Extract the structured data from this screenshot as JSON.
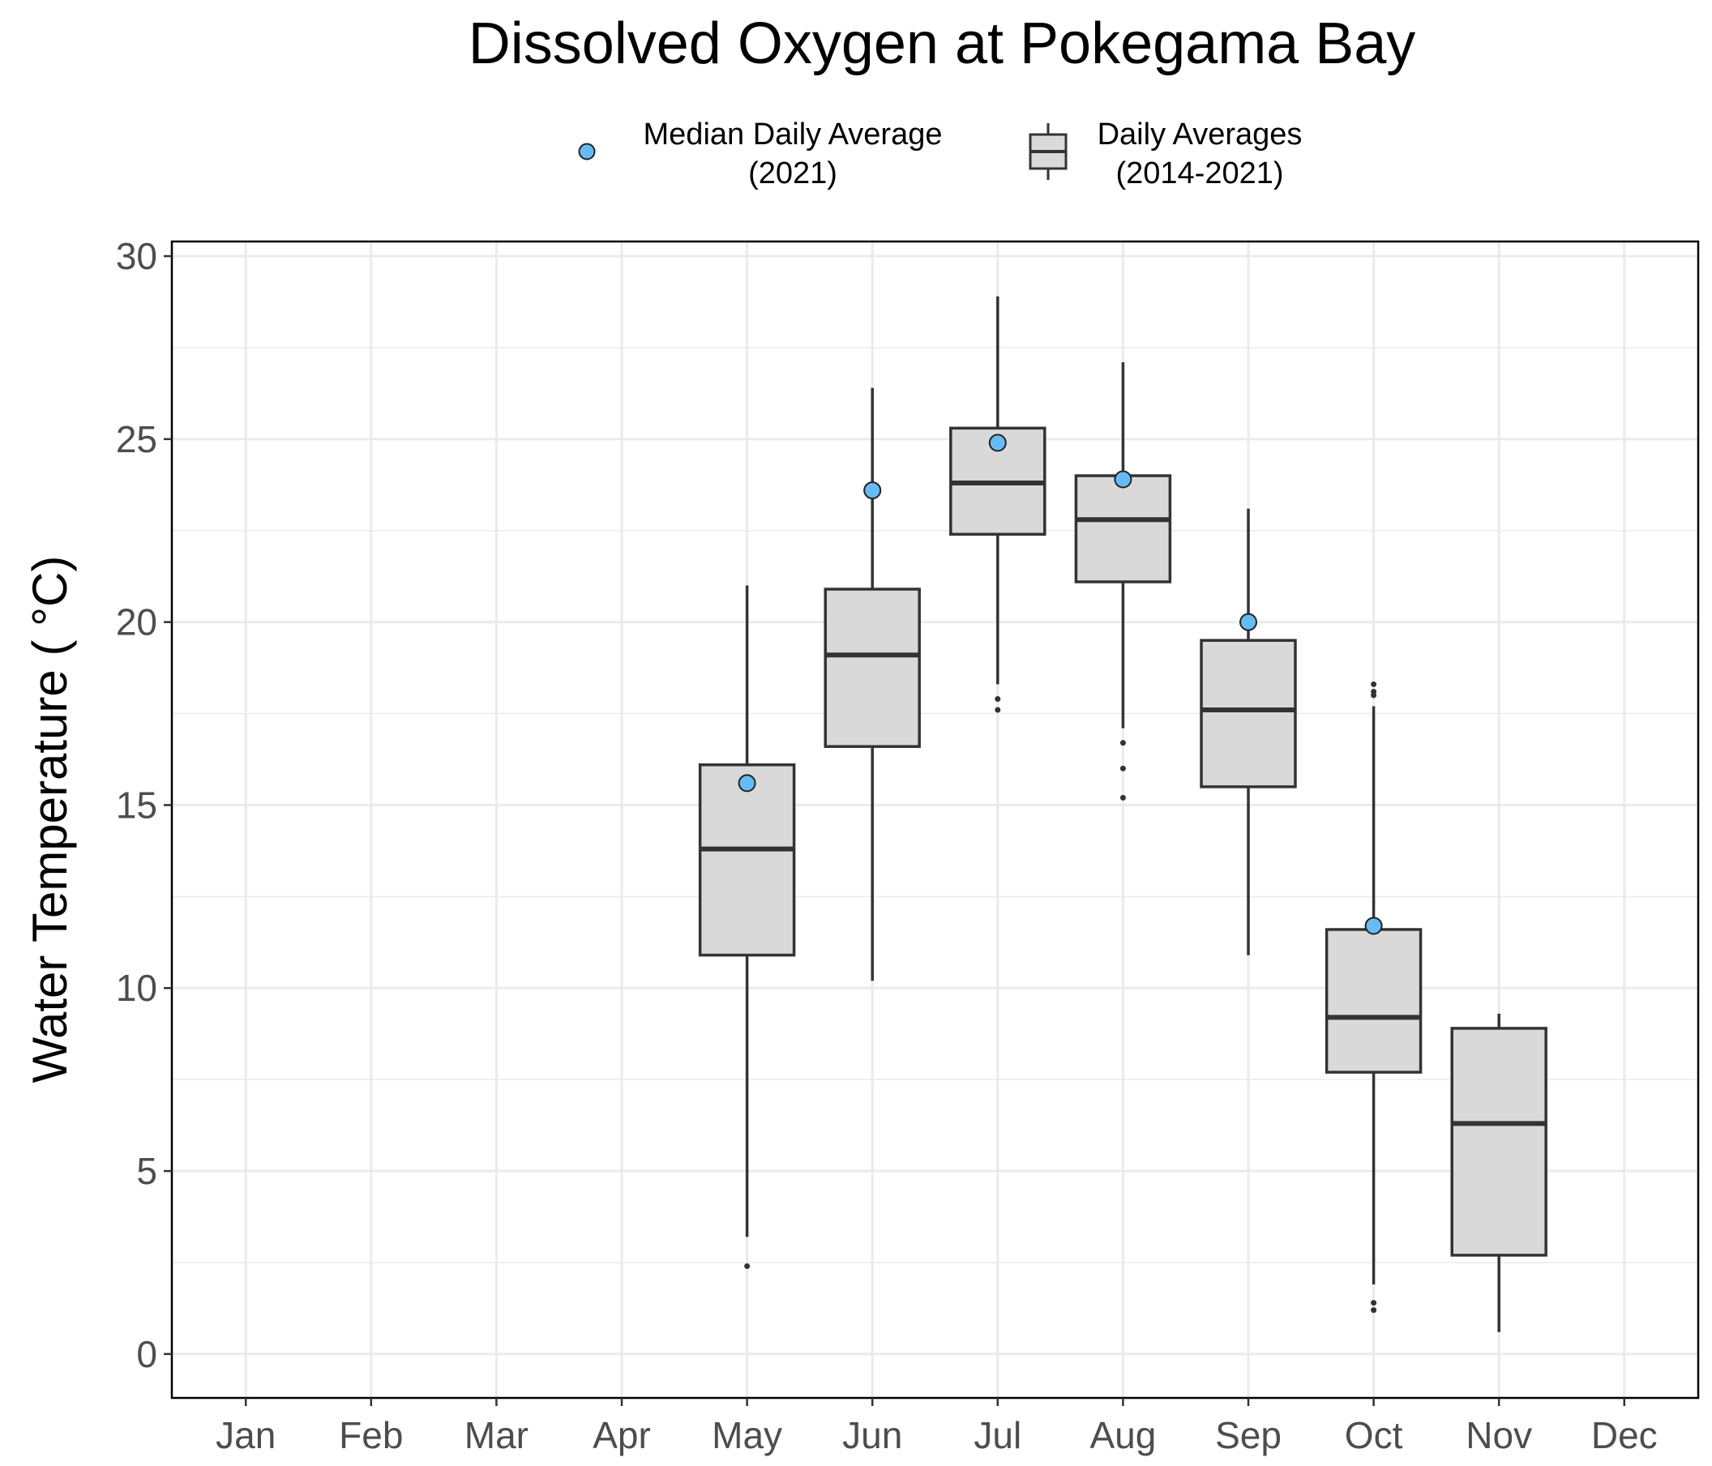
{
  "chart_data": {
    "type": "box",
    "title": "Dissolved Oxygen at Pokegama Bay",
    "ylabel": "Water Temperature ( °C)",
    "xlabel": "",
    "ylim": [
      -1.2,
      30.4
    ],
    "yticks": [
      0,
      5,
      10,
      15,
      20,
      25,
      30
    ],
    "grid": true,
    "legend_position": "top",
    "legend": {
      "point_label_line1": "Median Daily Average",
      "point_label_line2": "(2021)",
      "box_label_line1": "Daily Averages",
      "box_label_line2": "(2014-2021)"
    },
    "categories": [
      "Jan",
      "Feb",
      "Mar",
      "Apr",
      "May",
      "Jun",
      "Jul",
      "Aug",
      "Sep",
      "Oct",
      "Nov",
      "Dec"
    ],
    "boxes": [
      {
        "month": "May",
        "whisker_low": 3.2,
        "q1": 10.9,
        "median": 13.8,
        "q3": 16.1,
        "whisker_high": 21.0,
        "outliers": [
          2.4
        ]
      },
      {
        "month": "Jun",
        "whisker_low": 10.2,
        "q1": 16.6,
        "median": 19.1,
        "q3": 20.9,
        "whisker_high": 26.4,
        "outliers": []
      },
      {
        "month": "Jul",
        "whisker_low": 18.3,
        "q1": 22.4,
        "median": 23.8,
        "q3": 25.3,
        "whisker_high": 28.9,
        "outliers": [
          17.9,
          17.6
        ]
      },
      {
        "month": "Aug",
        "whisker_low": 17.1,
        "q1": 21.1,
        "median": 22.8,
        "q3": 24.0,
        "whisker_high": 27.1,
        "outliers": [
          16.7,
          16.0,
          15.2
        ]
      },
      {
        "month": "Sep",
        "whisker_low": 10.9,
        "q1": 15.5,
        "median": 17.6,
        "q3": 19.5,
        "whisker_high": 23.1,
        "outliers": []
      },
      {
        "month": "Oct",
        "whisker_low": 1.9,
        "q1": 7.7,
        "median": 9.2,
        "q3": 11.6,
        "whisker_high": 17.7,
        "outliers": [
          18.3,
          18.1,
          18.0,
          1.4,
          1.2
        ]
      },
      {
        "month": "Nov",
        "whisker_low": 0.6,
        "q1": 2.7,
        "median": 6.3,
        "q3": 8.9,
        "whisker_high": 9.3,
        "outliers": []
      }
    ],
    "median_2021": [
      {
        "month": "May",
        "value": 15.6
      },
      {
        "month": "Jun",
        "value": 23.6
      },
      {
        "month": "Jul",
        "value": 24.9
      },
      {
        "month": "Aug",
        "value": 23.9
      },
      {
        "month": "Sep",
        "value": 20.0
      },
      {
        "month": "Oct",
        "value": 11.7
      }
    ]
  },
  "colors": {
    "box_fill": "#d9d9d9",
    "box_stroke": "#333333",
    "point_fill": "#66bbf5",
    "grid": "#ebebeb",
    "axis_text": "#4d4d4d",
    "panel_border": "#000000"
  }
}
